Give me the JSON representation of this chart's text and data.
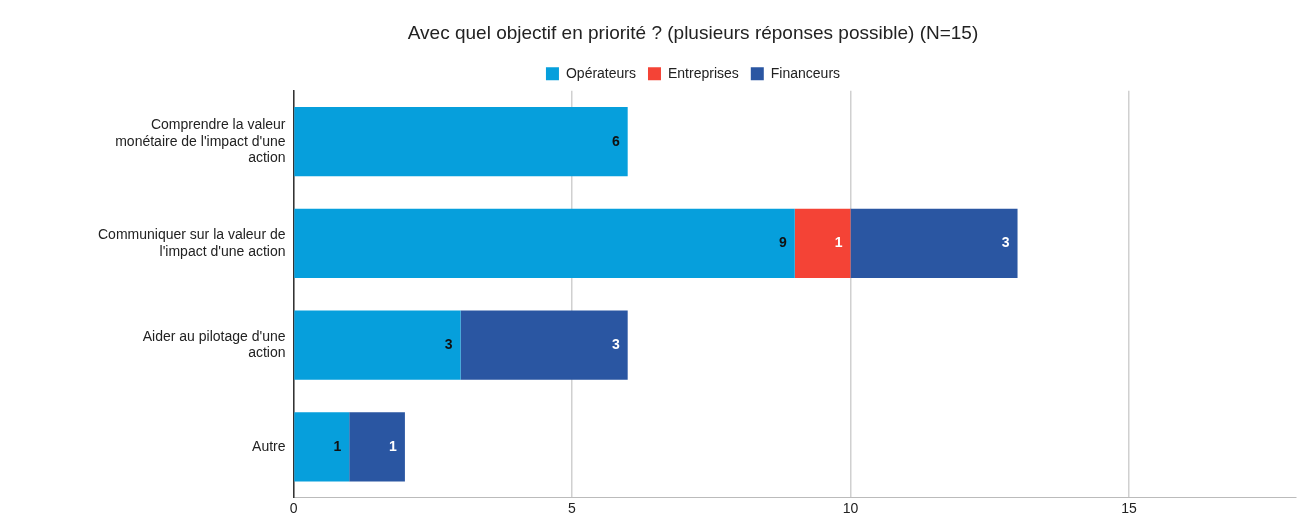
{
  "chart_data": {
    "type": "bar",
    "orientation": "horizontal",
    "stacked": true,
    "title": "Avec quel objectif en priorité ? (plusieurs réponses possible) (N=15)",
    "categories": [
      "Comprendre la valeur monétaire de l'impact d'une action",
      "Communiquer sur la valeur de l'impact d'une action",
      "Aider au pilotage d'une action",
      "Autre"
    ],
    "series": [
      {
        "name": "Opérateurs",
        "color": "#069fdc",
        "values": [
          6,
          9,
          3,
          1
        ]
      },
      {
        "name": "Entreprises",
        "color": "#f44336",
        "values": [
          null,
          1,
          null,
          null
        ]
      },
      {
        "name": "Financeurs",
        "color": "#2a56a2",
        "values": [
          null,
          3,
          3,
          1
        ]
      }
    ],
    "xlim": [
      0,
      18
    ],
    "xticks": [
      0,
      5,
      10,
      15
    ],
    "grid": "x",
    "legend": "top",
    "data_labels": true
  }
}
